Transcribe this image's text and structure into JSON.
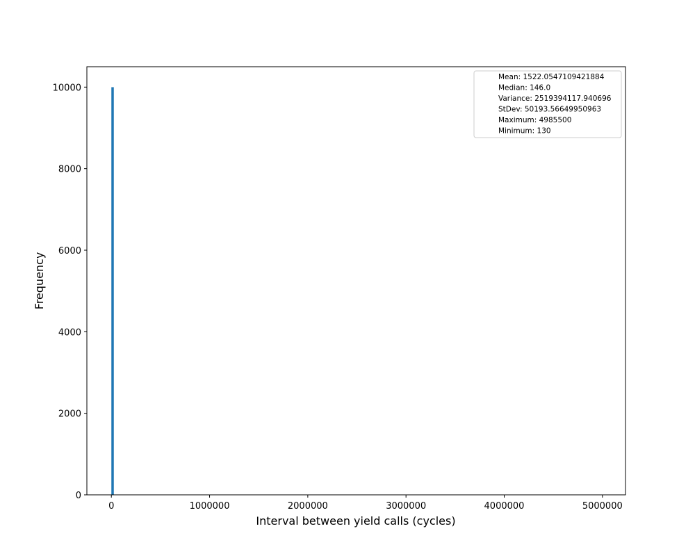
{
  "chart_data": {
    "type": "bar",
    "title": "",
    "xlabel": "Interval between yield calls (cycles)",
    "ylabel": "Frequency",
    "xlim": [
      -249240,
      5234870
    ],
    "ylim": [
      0,
      10500
    ],
    "x_ticks": [
      0,
      1000000,
      2000000,
      3000000,
      4000000,
      5000000
    ],
    "x_tick_labels": [
      "0",
      "1000000",
      "2000000",
      "3000000",
      "4000000",
      "5000000"
    ],
    "y_ticks": [
      0,
      2000,
      4000,
      6000,
      8000,
      10000
    ],
    "y_tick_labels": [
      "0",
      "2000",
      "4000",
      "6000",
      "8000",
      "10000"
    ],
    "bins": [
      {
        "x_start": 130,
        "x_end": 25000,
        "value": 9998
      }
    ],
    "bar_color": "#1f77b4",
    "grid": false,
    "legend_position": "top-right",
    "legend_entries": [
      "Mean: 1522.0547109421884",
      "Median: 146.0",
      "Variance: 2519394117.940696",
      "StDev: 50193.56649950963",
      "Maximum: 4985500",
      "Minimum: 130"
    ]
  }
}
